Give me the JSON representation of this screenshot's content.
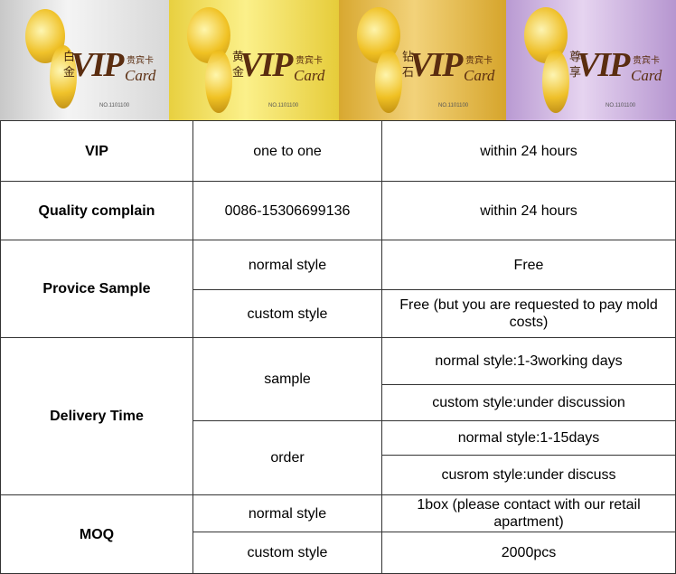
{
  "cards": [
    {
      "label": "白金",
      "title": "VIP",
      "subtitle": "Card",
      "badge": "贵宾卡",
      "number": "NO.1101100"
    },
    {
      "label": "黄金",
      "title": "VIP",
      "subtitle": "Card",
      "badge": "贵宾卡",
      "number": "NO.1101100"
    },
    {
      "label": "钻石",
      "title": "VIP",
      "subtitle": "Card",
      "badge": "贵宾卡",
      "number": "NO.1101100"
    },
    {
      "label": "尊享",
      "title": "VIP",
      "subtitle": "Card",
      "badge": "贵宾卡",
      "number": "NO.1101100"
    }
  ],
  "table": {
    "rows": [
      {
        "label": "VIP",
        "items": [
          {
            "label": "one to one",
            "values": [
              "within 24 hours"
            ]
          }
        ]
      },
      {
        "label": "Quality complain",
        "items": [
          {
            "label": "0086-15306699136",
            "values": [
              "within 24 hours"
            ]
          }
        ]
      },
      {
        "label": "Provice Sample",
        "items": [
          {
            "label": "normal style",
            "values": [
              "Free"
            ]
          },
          {
            "label": "custom style",
            "values": [
              "Free (but you are requested to pay mold costs)"
            ]
          }
        ]
      },
      {
        "label": "Delivery Time",
        "items": [
          {
            "label": "sample",
            "values": [
              "normal style:1-3working days",
              "custom style:under discussion"
            ]
          },
          {
            "label": "order",
            "values": [
              "normal style:1-15days",
              "cusrom style:under discuss"
            ]
          }
        ]
      },
      {
        "label": "MOQ",
        "items": [
          {
            "label": "normal style",
            "values": [
              "1box (please contact with our retail apartment)"
            ]
          },
          {
            "label": "custom style",
            "values": [
              "2000pcs"
            ]
          }
        ]
      }
    ]
  }
}
